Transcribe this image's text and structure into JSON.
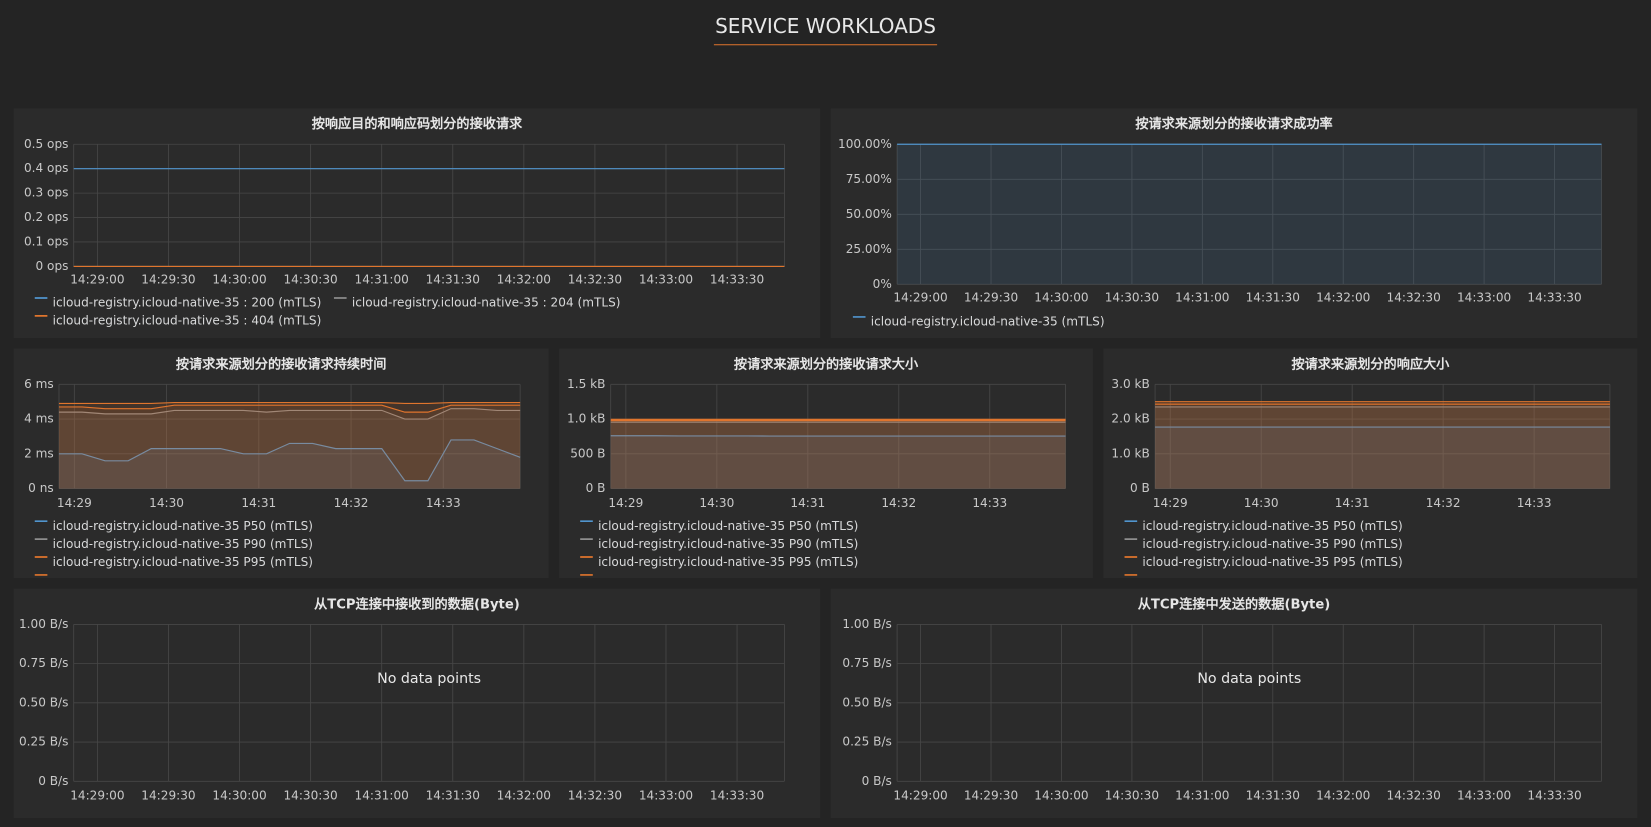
{
  "header": {
    "title": "SERVICE WORKLOADS"
  },
  "chart_data": [
    {
      "type": "line",
      "title": "按响应目的和响应码划分的接收请求",
      "x": [
        "14:28:50",
        "14:29:20",
        "14:29:50",
        "14:30:20",
        "14:30:50",
        "14:31:20",
        "14:31:50",
        "14:32:20",
        "14:32:50",
        "14:33:20",
        "14:33:50"
      ],
      "series": [
        {
          "name": "icloud-registry.icloud-native-35 : 200 (mTLS)",
          "color": "#5195ce",
          "values": [
            0.4,
            0.4,
            0.4,
            0.4,
            0.4,
            0.4,
            0.4,
            0.4,
            0.4,
            0.4,
            0.4
          ]
        },
        {
          "name": "icloud-registry.icloud-native-35 : 204 (mTLS)",
          "color": "#8e8e8e",
          "values": [
            0,
            0,
            0,
            0,
            0,
            0,
            0,
            0,
            0,
            0,
            0
          ]
        },
        {
          "name": "icloud-registry.icloud-native-35 : 404 (mTLS)",
          "color": "#e0752d",
          "values": [
            0,
            0,
            0,
            0,
            0,
            0,
            0,
            0,
            0,
            0,
            0
          ]
        }
      ],
      "xlim": [
        "14:28:50",
        "14:33:50"
      ],
      "xticks": [
        "14:29:00",
        "14:29:30",
        "14:30:00",
        "14:30:30",
        "14:31:00",
        "14:31:30",
        "14:32:00",
        "14:32:30",
        "14:33:00",
        "14:33:30"
      ],
      "ylim": [
        0,
        0.5
      ],
      "yticks": [
        {
          "value": 0,
          "label": "0 ops"
        },
        {
          "value": 0.1,
          "label": "0.1 ops"
        },
        {
          "value": 0.2,
          "label": "0.2 ops"
        },
        {
          "value": 0.3,
          "label": "0.3 ops"
        },
        {
          "value": 0.4,
          "label": "0.4 ops"
        },
        {
          "value": 0.5,
          "label": "0.5 ops"
        }
      ],
      "grid": true,
      "fill": false
    },
    {
      "type": "line",
      "title": "按请求来源划分的接收请求成功率",
      "x": [
        "14:28:50",
        "14:29:20",
        "14:29:50",
        "14:30:20",
        "14:30:50",
        "14:31:20",
        "14:31:50",
        "14:32:20",
        "14:32:50",
        "14:33:20",
        "14:33:50"
      ],
      "series": [
        {
          "name": "icloud-registry.icloud-native-35 (mTLS)",
          "color": "#5195ce",
          "values": [
            100,
            100,
            100,
            100,
            100,
            100,
            100,
            100,
            100,
            100,
            100
          ]
        }
      ],
      "xlim": [
        "14:28:50",
        "14:33:50"
      ],
      "xticks": [
        "14:29:00",
        "14:29:30",
        "14:30:00",
        "14:30:30",
        "14:31:00",
        "14:31:30",
        "14:32:00",
        "14:32:30",
        "14:33:00",
        "14:33:30"
      ],
      "ylim": [
        0,
        100
      ],
      "yticks": [
        {
          "value": 0,
          "label": "0%"
        },
        {
          "value": 25,
          "label": "25.00%"
        },
        {
          "value": 50,
          "label": "50.00%"
        },
        {
          "value": 75,
          "label": "75.00%"
        },
        {
          "value": 100,
          "label": "100.00%"
        }
      ],
      "grid": true,
      "fill": true
    },
    {
      "type": "line",
      "title": "按请求来源划分的接收请求持续时间",
      "x": [
        "14:28:50",
        "14:29:05",
        "14:29:20",
        "14:29:35",
        "14:29:50",
        "14:30:05",
        "14:30:20",
        "14:30:35",
        "14:30:50",
        "14:31:05",
        "14:31:20",
        "14:31:35",
        "14:31:50",
        "14:32:05",
        "14:32:20",
        "14:32:35",
        "14:32:50",
        "14:33:05",
        "14:33:20",
        "14:33:35",
        "14:33:50"
      ],
      "series": [
        {
          "name": "icloud-registry.icloud-native-35 P50 (mTLS)",
          "color": "#5195ce",
          "values": [
            2.0,
            2.0,
            1.6,
            1.6,
            2.3,
            2.3,
            2.3,
            2.3,
            2.0,
            2.0,
            2.6,
            2.6,
            2.3,
            2.3,
            2.3,
            0.45,
            0.45,
            2.8,
            2.8,
            2.3,
            1.8
          ]
        },
        {
          "name": "icloud-registry.icloud-native-35 P90 (mTLS)",
          "color": "#8e8e8e",
          "values": [
            4.4,
            4.4,
            4.3,
            4.3,
            4.3,
            4.5,
            4.5,
            4.5,
            4.5,
            4.4,
            4.5,
            4.5,
            4.5,
            4.5,
            4.5,
            4.0,
            4.0,
            4.6,
            4.6,
            4.5,
            4.5
          ]
        },
        {
          "name": "icloud-registry.icloud-native-35 P95 (mTLS)",
          "color": "#e0752d",
          "values": [
            4.7,
            4.7,
            4.6,
            4.6,
            4.6,
            4.8,
            4.8,
            4.8,
            4.8,
            4.8,
            4.8,
            4.8,
            4.8,
            4.8,
            4.8,
            4.4,
            4.4,
            4.8,
            4.8,
            4.8,
            4.8
          ]
        },
        {
          "color": "#e0752d",
          "values": [
            4.9,
            4.9,
            4.9,
            4.9,
            4.9,
            4.95,
            4.95,
            4.95,
            4.95,
            4.95,
            4.95,
            4.95,
            4.95,
            4.95,
            4.95,
            4.9,
            4.9,
            4.95,
            4.95,
            4.95,
            4.95
          ]
        }
      ],
      "xlim": [
        "14:28:50",
        "14:33:50"
      ],
      "xticks": [
        "14:29",
        "14:30",
        "14:31",
        "14:32",
        "14:33"
      ],
      "ylim": [
        0,
        6
      ],
      "yticks": [
        {
          "value": 0,
          "label": "0 ns"
        },
        {
          "value": 2,
          "label": "2 ms"
        },
        {
          "value": 4,
          "label": "4 ms"
        },
        {
          "value": 6,
          "label": "6 ms"
        }
      ],
      "grid": true,
      "fill": true
    },
    {
      "type": "line",
      "title": "按请求来源划分的接收请求大小",
      "x": [
        "14:28:50",
        "14:29:05",
        "14:29:20",
        "14:29:35",
        "14:29:50",
        "14:30:05",
        "14:30:20",
        "14:30:35",
        "14:30:50",
        "14:31:05",
        "14:31:20",
        "14:31:35",
        "14:31:50",
        "14:32:05",
        "14:32:20",
        "14:32:35",
        "14:32:50",
        "14:33:05",
        "14:33:20",
        "14:33:35",
        "14:33:50"
      ],
      "series": [
        {
          "name": "icloud-registry.icloud-native-35 P50 (mTLS)",
          "color": "#5195ce",
          "values": [
            760,
            760,
            760,
            758,
            758,
            758,
            758,
            756,
            756,
            756,
            756,
            756,
            756,
            756,
            756,
            756,
            756,
            756,
            756,
            756,
            756
          ]
        },
        {
          "name": "icloud-registry.icloud-native-35 P90 (mTLS)",
          "color": "#8e8e8e",
          "values": [
            955,
            955,
            955,
            955,
            955,
            955,
            955,
            955,
            955,
            955,
            955,
            955,
            955,
            955,
            955,
            955,
            955,
            955,
            955,
            955,
            955
          ]
        },
        {
          "name": "icloud-registry.icloud-native-35 P95 (mTLS)",
          "color": "#e0752d",
          "values": [
            978,
            978,
            978,
            978,
            978,
            978,
            978,
            978,
            978,
            978,
            978,
            978,
            978,
            978,
            978,
            978,
            978,
            978,
            978,
            978,
            978
          ]
        },
        {
          "color": "#e0752d",
          "values": [
            996,
            996,
            996,
            996,
            996,
            996,
            996,
            996,
            996,
            996,
            996,
            996,
            996,
            996,
            996,
            996,
            996,
            996,
            996,
            996,
            996
          ]
        }
      ],
      "xlim": [
        "14:28:50",
        "14:33:50"
      ],
      "xticks": [
        "14:29",
        "14:30",
        "14:31",
        "14:32",
        "14:33"
      ],
      "ylim": [
        0,
        1500
      ],
      "yticks": [
        {
          "value": 0,
          "label": "0 B"
        },
        {
          "value": 500,
          "label": "500 B"
        },
        {
          "value": 1000,
          "label": "1.0 kB"
        },
        {
          "value": 1500,
          "label": "1.5 kB"
        }
      ],
      "grid": true,
      "fill": true
    },
    {
      "type": "line",
      "title": "按请求来源划分的响应大小",
      "x": [
        "14:28:50",
        "14:29:05",
        "14:29:20",
        "14:29:35",
        "14:29:50",
        "14:30:05",
        "14:30:20",
        "14:30:35",
        "14:30:50",
        "14:31:05",
        "14:31:20",
        "14:31:35",
        "14:31:50",
        "14:32:05",
        "14:32:20",
        "14:32:35",
        "14:32:50",
        "14:33:05",
        "14:33:20",
        "14:33:35",
        "14:33:50"
      ],
      "series": [
        {
          "name": "icloud-registry.icloud-native-35 P50 (mTLS)",
          "color": "#5195ce",
          "values": [
            1770,
            1770,
            1770,
            1770,
            1770,
            1770,
            1770,
            1770,
            1770,
            1770,
            1770,
            1770,
            1770,
            1770,
            1770,
            1770,
            1770,
            1770,
            1770,
            1770,
            1770
          ]
        },
        {
          "name": "icloud-registry.icloud-native-35 P90 (mTLS)",
          "color": "#8e8e8e",
          "values": [
            2350,
            2350,
            2350,
            2350,
            2350,
            2350,
            2350,
            2350,
            2350,
            2350,
            2350,
            2350,
            2350,
            2350,
            2350,
            2350,
            2350,
            2350,
            2350,
            2350,
            2350
          ]
        },
        {
          "name": "icloud-registry.icloud-native-35 P95 (mTLS)",
          "color": "#e0752d",
          "values": [
            2430,
            2430,
            2430,
            2430,
            2430,
            2430,
            2430,
            2430,
            2430,
            2430,
            2430,
            2430,
            2430,
            2430,
            2430,
            2430,
            2430,
            2430,
            2430,
            2430,
            2430
          ]
        },
        {
          "color": "#e0752d",
          "values": [
            2500,
            2500,
            2500,
            2500,
            2500,
            2500,
            2500,
            2500,
            2500,
            2500,
            2500,
            2500,
            2500,
            2500,
            2500,
            2500,
            2500,
            2500,
            2500,
            2500,
            2500
          ]
        }
      ],
      "xlim": [
        "14:28:50",
        "14:33:50"
      ],
      "xticks": [
        "14:29",
        "14:30",
        "14:31",
        "14:32",
        "14:33"
      ],
      "ylim": [
        0,
        3000
      ],
      "yticks": [
        {
          "value": 0,
          "label": "0 B"
        },
        {
          "value": 1000,
          "label": "1.0 kB"
        },
        {
          "value": 2000,
          "label": "2.0 kB"
        },
        {
          "value": 3000,
          "label": "3.0 kB"
        }
      ],
      "grid": true,
      "fill": true
    },
    {
      "type": "line",
      "title": "从TCP连接中接收到的数据(Byte)",
      "annotation": "No data points",
      "xlim": [
        "14:28:50",
        "14:33:50"
      ],
      "xticks": [
        "14:29:00",
        "14:29:30",
        "14:30:00",
        "14:30:30",
        "14:31:00",
        "14:31:30",
        "14:32:00",
        "14:32:30",
        "14:33:00",
        "14:33:30"
      ],
      "ylim": [
        0,
        1
      ],
      "yticks": [
        {
          "value": 0,
          "label": "0 B/s"
        },
        {
          "value": 0.25,
          "label": "0.25 B/s"
        },
        {
          "value": 0.5,
          "label": "0.50 B/s"
        },
        {
          "value": 0.75,
          "label": "0.75 B/s"
        },
        {
          "value": 1,
          "label": "1.00 B/s"
        }
      ],
      "grid": true
    },
    {
      "type": "line",
      "title": "从TCP连接中发送的数据(Byte)",
      "annotation": "No data points",
      "xlim": [
        "14:28:50",
        "14:33:50"
      ],
      "xticks": [
        "14:29:00",
        "14:29:30",
        "14:30:00",
        "14:30:30",
        "14:31:00",
        "14:31:30",
        "14:32:00",
        "14:32:30",
        "14:33:00",
        "14:33:30"
      ],
      "ylim": [
        0,
        1
      ],
      "yticks": [
        {
          "value": 0,
          "label": "0 B/s"
        },
        {
          "value": 0.25,
          "label": "0.25 B/s"
        },
        {
          "value": 0.5,
          "label": "0.50 B/s"
        },
        {
          "value": 0.75,
          "label": "0.75 B/s"
        },
        {
          "value": 1,
          "label": "1.00 B/s"
        }
      ],
      "grid": true
    }
  ]
}
